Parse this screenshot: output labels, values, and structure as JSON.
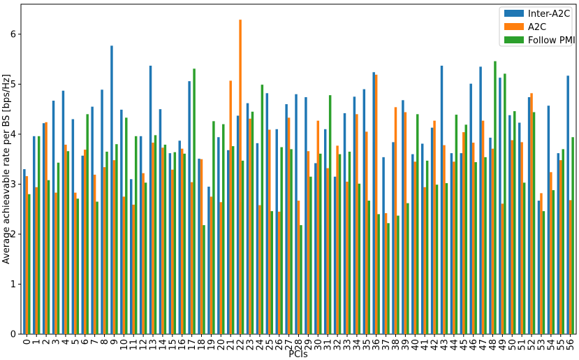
{
  "chart_data": {
    "type": "bar",
    "xlabel": "PCIs",
    "ylabel": "Average achieavable rate per BS [bps/Hz]",
    "ylim": [
      0,
      6.6
    ],
    "yticks": [
      0,
      1,
      2,
      3,
      4,
      5,
      6
    ],
    "legend_position": "top-right",
    "grid": false,
    "categories": [
      "0",
      "1",
      "2",
      "3",
      "4",
      "5",
      "6",
      "7",
      "8",
      "9",
      "10",
      "11",
      "12",
      "13",
      "14",
      "15",
      "16",
      "17",
      "18",
      "19",
      "20",
      "21",
      "22",
      "23",
      "24",
      "25",
      "26",
      "27",
      "28",
      "29",
      "30",
      "31",
      "32",
      "33",
      "34",
      "35",
      "36",
      "37",
      "38",
      "39",
      "40",
      "41",
      "42",
      "43",
      "44",
      "45",
      "46",
      "47",
      "48",
      "49",
      "50",
      "51",
      "52",
      "53",
      "54",
      "55",
      "56"
    ],
    "series": [
      {
        "name": "Inter-A2C",
        "color": "#1f77b4",
        "values": [
          3.3,
          3.96,
          4.22,
          4.67,
          4.87,
          4.3,
          3.57,
          4.55,
          4.89,
          5.77,
          4.49,
          3.1,
          3.96,
          5.37,
          4.5,
          3.62,
          3.87,
          5.06,
          3.51,
          2.95,
          3.94,
          3.68,
          4.37,
          4.62,
          3.82,
          4.82,
          4.1,
          4.6,
          4.8,
          4.74,
          3.42,
          4.1,
          3.15,
          4.42,
          4.75,
          4.9,
          5.24,
          3.54,
          3.84,
          4.68,
          3.6,
          3.81,
          4.13,
          5.37,
          3.62,
          3.62,
          5.01,
          5.35,
          3.93,
          5.13,
          4.38,
          4.23,
          4.74,
          2.67,
          4.57,
          3.62,
          5.17
        ]
      },
      {
        "name": "A2C",
        "color": "#ff7f0e",
        "values": [
          3.16,
          2.94,
          4.24,
          2.83,
          3.79,
          2.83,
          3.69,
          3.19,
          3.34,
          3.48,
          2.75,
          2.59,
          3.22,
          3.83,
          3.73,
          3.29,
          3.71,
          3.04,
          3.5,
          2.75,
          2.64,
          5.07,
          6.29,
          4.31,
          2.58,
          4.09,
          2.45,
          4.33,
          2.67,
          3.66,
          4.27,
          3.32,
          3.77,
          3.05,
          4.4,
          4.05,
          5.19,
          2.42,
          4.54,
          4.44,
          3.45,
          2.94,
          4.27,
          3.78,
          3.45,
          4.04,
          3.83,
          4.27,
          3.71,
          2.61,
          3.88,
          3.84,
          4.82,
          2.82,
          3.24,
          3.48,
          2.68
        ]
      },
      {
        "name": "Follow PMI",
        "color": "#2ca02c",
        "values": [
          2.8,
          3.96,
          3.08,
          3.43,
          3.66,
          2.71,
          4.4,
          2.65,
          3.65,
          3.8,
          4.33,
          3.96,
          3.03,
          3.98,
          3.79,
          3.64,
          3.61,
          5.31,
          2.18,
          4.26,
          4.2,
          3.76,
          3.47,
          4.45,
          4.99,
          2.46,
          3.74,
          3.7,
          2.18,
          3.15,
          3.61,
          4.78,
          3.6,
          3.65,
          3.01,
          2.67,
          2.4,
          2.22,
          2.37,
          2.62,
          4.4,
          3.47,
          2.99,
          3.02,
          4.39,
          4.19,
          3.44,
          3.54,
          5.46,
          5.21,
          4.46,
          3.03,
          4.44,
          2.46,
          2.88,
          3.7,
          3.94
        ]
      }
    ]
  }
}
